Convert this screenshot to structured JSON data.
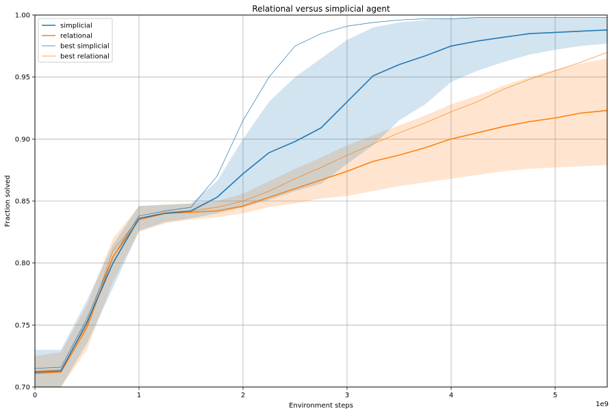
{
  "chart_data": {
    "type": "line",
    "title": "Relational versus simplicial agent",
    "xlabel": "Environment steps",
    "ylabel": "Fraction solved",
    "x_offset_label": "1e9",
    "xlim": [
      0,
      5.5
    ],
    "ylim": [
      0.7,
      1.0
    ],
    "x_ticks": [
      0,
      1,
      2,
      3,
      4,
      5
    ],
    "x_tick_labels": [
      "0",
      "1",
      "2",
      "3",
      "4",
      "5"
    ],
    "y_ticks": [
      0.7,
      0.75,
      0.8,
      0.85,
      0.9,
      0.95,
      1.0
    ],
    "y_tick_labels": [
      "0.70",
      "0.75",
      "0.80",
      "0.85",
      "0.90",
      "0.95",
      "1.00"
    ],
    "grid": true,
    "legend_position": "top-left",
    "legend": [
      "simplicial",
      "relational",
      "best simplicial",
      "best relational"
    ],
    "colors": {
      "simplicial": "#1f77b4",
      "relational": "#ff7f0e",
      "simplicial_band": "#1f77b4",
      "relational_band": "#ff7f0e"
    },
    "series": [
      {
        "name": "simplicial",
        "style": "mean",
        "x": [
          0,
          0.25,
          0.5,
          0.75,
          1.0,
          1.25,
          1.5,
          1.75,
          2.0,
          2.25,
          2.5,
          2.75,
          3.0,
          3.25,
          3.5,
          3.75,
          4.0,
          4.25,
          4.5,
          4.75,
          5.0,
          5.25,
          5.5
        ],
        "y": [
          0.712,
          0.713,
          0.752,
          0.8,
          0.836,
          0.84,
          0.842,
          0.853,
          0.872,
          0.889,
          0.898,
          0.909,
          0.93,
          0.951,
          0.96,
          0.967,
          0.975,
          0.979,
          0.982,
          0.985,
          0.986,
          0.987,
          0.988
        ],
        "band_low": [
          0.7,
          0.7,
          0.735,
          0.78,
          0.826,
          0.833,
          0.836,
          0.84,
          0.845,
          0.851,
          0.858,
          0.864,
          0.88,
          0.895,
          0.915,
          0.928,
          0.946,
          0.955,
          0.962,
          0.968,
          0.972,
          0.975,
          0.977
        ],
        "band_high": [
          0.73,
          0.73,
          0.77,
          0.815,
          0.846,
          0.847,
          0.848,
          0.866,
          0.9,
          0.93,
          0.95,
          0.965,
          0.98,
          0.99,
          0.994,
          0.996,
          0.997,
          0.998,
          0.998,
          0.998,
          0.998,
          0.998,
          0.998
        ]
      },
      {
        "name": "relational",
        "style": "mean",
        "x": [
          0,
          0.25,
          0.5,
          0.75,
          1.0,
          1.25,
          1.5,
          1.75,
          2.0,
          2.25,
          2.5,
          2.75,
          3.0,
          3.25,
          3.5,
          3.75,
          4.0,
          4.25,
          4.5,
          4.75,
          5.0,
          5.25,
          5.5
        ],
        "y": [
          0.711,
          0.712,
          0.748,
          0.805,
          0.835,
          0.84,
          0.841,
          0.842,
          0.846,
          0.853,
          0.86,
          0.867,
          0.874,
          0.882,
          0.887,
          0.893,
          0.9,
          0.905,
          0.91,
          0.914,
          0.917,
          0.921,
          0.923
        ],
        "band_low": [
          0.7,
          0.7,
          0.73,
          0.785,
          0.825,
          0.832,
          0.835,
          0.837,
          0.84,
          0.845,
          0.848,
          0.852,
          0.854,
          0.858,
          0.862,
          0.865,
          0.868,
          0.871,
          0.874,
          0.876,
          0.877,
          0.878,
          0.879
        ],
        "band_high": [
          0.725,
          0.728,
          0.766,
          0.82,
          0.846,
          0.847,
          0.848,
          0.85,
          0.856,
          0.866,
          0.876,
          0.885,
          0.895,
          0.903,
          0.911,
          0.919,
          0.928,
          0.935,
          0.943,
          0.95,
          0.956,
          0.961,
          0.965
        ]
      },
      {
        "name": "best simplicial",
        "style": "thin",
        "x": [
          0,
          0.25,
          0.5,
          0.75,
          1.0,
          1.25,
          1.5,
          1.75,
          2.0,
          2.25,
          2.5,
          2.75,
          3.0,
          3.25,
          3.5,
          3.75,
          4.0,
          4.25,
          4.5,
          4.75,
          5.0,
          5.25,
          5.5
        ],
        "y": [
          0.715,
          0.716,
          0.755,
          0.805,
          0.838,
          0.842,
          0.845,
          0.87,
          0.915,
          0.95,
          0.975,
          0.985,
          0.991,
          0.994,
          0.996,
          0.997,
          0.997,
          0.998,
          0.998,
          0.998,
          0.998,
          0.998,
          0.998
        ]
      },
      {
        "name": "best relational",
        "style": "thin",
        "x": [
          0,
          0.25,
          0.5,
          0.75,
          1.0,
          1.25,
          1.5,
          1.75,
          2.0,
          2.25,
          2.5,
          2.75,
          3.0,
          3.25,
          3.5,
          3.75,
          4.0,
          4.25,
          4.5,
          4.75,
          5.0,
          5.25,
          5.5
        ],
        "y": [
          0.713,
          0.714,
          0.75,
          0.81,
          0.836,
          0.841,
          0.842,
          0.845,
          0.85,
          0.858,
          0.868,
          0.877,
          0.887,
          0.896,
          0.905,
          0.913,
          0.922,
          0.93,
          0.94,
          0.948,
          0.955,
          0.962,
          0.97
        ]
      }
    ]
  }
}
